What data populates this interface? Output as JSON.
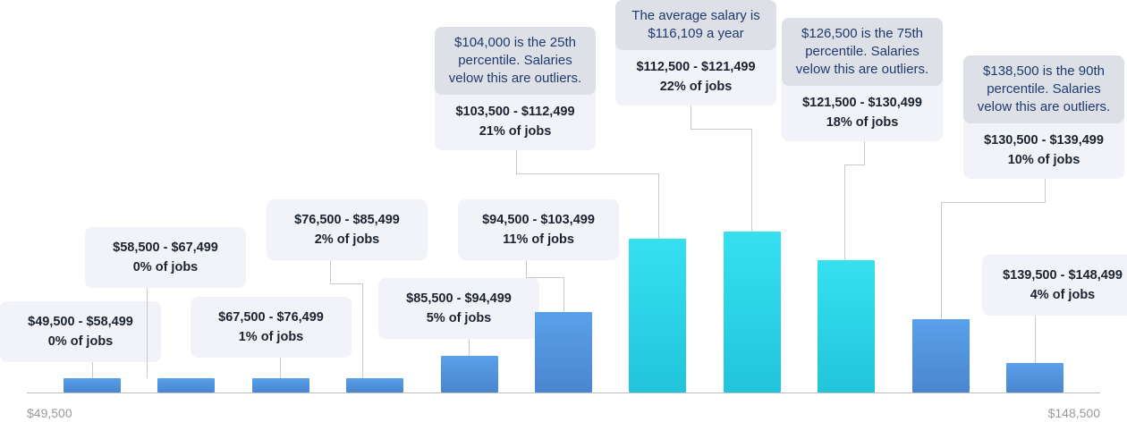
{
  "chart_data": {
    "type": "bar",
    "title": "",
    "xlabel": "",
    "ylabel": "",
    "x_start_label": "$49,500",
    "x_end_label": "$148,500",
    "colors": {
      "standard": "#4a90e2",
      "highlight": "#2ad8ea"
    },
    "bins": [
      {
        "range": "$49,500 - $58,499",
        "pct_label": "0% of jobs",
        "value": 0,
        "highlight": false,
        "note": ""
      },
      {
        "range": "$58,500 - $67,499",
        "pct_label": "0% of jobs",
        "value": 0,
        "highlight": false,
        "note": ""
      },
      {
        "range": "$67,500 - $76,499",
        "pct_label": "1% of jobs",
        "value": 1,
        "highlight": false,
        "note": ""
      },
      {
        "range": "$76,500 - $85,499",
        "pct_label": "2% of jobs",
        "value": 2,
        "highlight": false,
        "note": ""
      },
      {
        "range": "$85,500 - $94,499",
        "pct_label": "5% of jobs",
        "value": 5,
        "highlight": false,
        "note": ""
      },
      {
        "range": "$94,500 - $103,499",
        "pct_label": "11% of jobs",
        "value": 11,
        "highlight": false,
        "note": ""
      },
      {
        "range": "$103,500 - $112,499",
        "pct_label": "21% of jobs",
        "value": 21,
        "highlight": true,
        "note": "$104,000 is the 25th percentile. Salaries velow this are outliers."
      },
      {
        "range": "$112,500 - $121,499",
        "pct_label": "22% of jobs",
        "value": 22,
        "highlight": true,
        "note": "The average salary is $116,109 a year"
      },
      {
        "range": "$121,500 - $130,499",
        "pct_label": "18% of jobs",
        "value": 18,
        "highlight": true,
        "note": "$126,500 is the 75th percentile. Salaries velow this are outliers."
      },
      {
        "range": "$130,500 - $139,499",
        "pct_label": "10% of jobs",
        "value": 10,
        "highlight": false,
        "note": "$138,500 is the 90th percentile. Salaries velow this are outliers."
      },
      {
        "range": "$139,500 - $148,499",
        "pct_label": "4% of jobs",
        "value": 4,
        "highlight": false,
        "note": ""
      }
    ]
  }
}
